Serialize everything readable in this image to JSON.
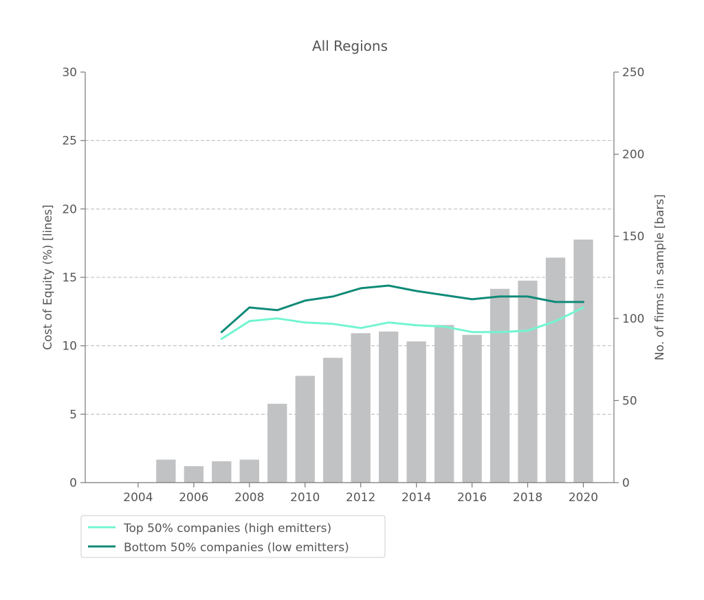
{
  "chart_data": {
    "type": "bar+line",
    "title": "All Regions",
    "y_left_label": "Cost of Equity (%) [lines]",
    "y_right_label": "No. of firms in sample [bars]",
    "x_ticks": [
      2004,
      2006,
      2008,
      2010,
      2012,
      2014,
      2016,
      2018,
      2020
    ],
    "y_left_ticks": [
      0,
      5,
      10,
      15,
      20,
      25,
      30
    ],
    "y_right_ticks": [
      0,
      50,
      100,
      150,
      200,
      250
    ],
    "x_range": [
      2002.1,
      2021.1
    ],
    "y_left_range": [
      0,
      30
    ],
    "y_right_range": [
      0,
      250
    ],
    "grid": "horizontal dashed",
    "legend_position": "below-left",
    "colors": {
      "bars": "#c1c2c4",
      "top": "#72f5d1",
      "bottom": "#0e8a78",
      "axis": "#777777",
      "grid": "#b8b8b8"
    },
    "bars": {
      "name": "No. of firms in sample",
      "x": [
        2005,
        2006,
        2007,
        2008,
        2009,
        2010,
        2011,
        2012,
        2013,
        2014,
        2015,
        2016,
        2017,
        2018,
        2019,
        2020
      ],
      "values": [
        14,
        10,
        13,
        14,
        48,
        65,
        76,
        91,
        92,
        86,
        96,
        90,
        118,
        123,
        137,
        148
      ]
    },
    "series": [
      {
        "name": "Top 50% companies (high emitters)",
        "x": [
          2007,
          2008,
          2009,
          2010,
          2011,
          2012,
          2013,
          2014,
          2015,
          2016,
          2017,
          2018,
          2019,
          2020
        ],
        "values": [
          10.5,
          11.8,
          12.0,
          11.7,
          11.6,
          11.3,
          11.7,
          11.5,
          11.4,
          11.0,
          11.0,
          11.1,
          11.8,
          12.8
        ]
      },
      {
        "name": "Bottom 50% companies (low emitters)",
        "x": [
          2007,
          2008,
          2009,
          2010,
          2011,
          2012,
          2013,
          2014,
          2015,
          2016,
          2017,
          2018,
          2019,
          2020
        ],
        "values": [
          11.0,
          12.8,
          12.6,
          13.3,
          13.6,
          14.2,
          14.4,
          14.0,
          13.7,
          13.4,
          13.6,
          13.6,
          13.2,
          13.2
        ]
      }
    ]
  }
}
